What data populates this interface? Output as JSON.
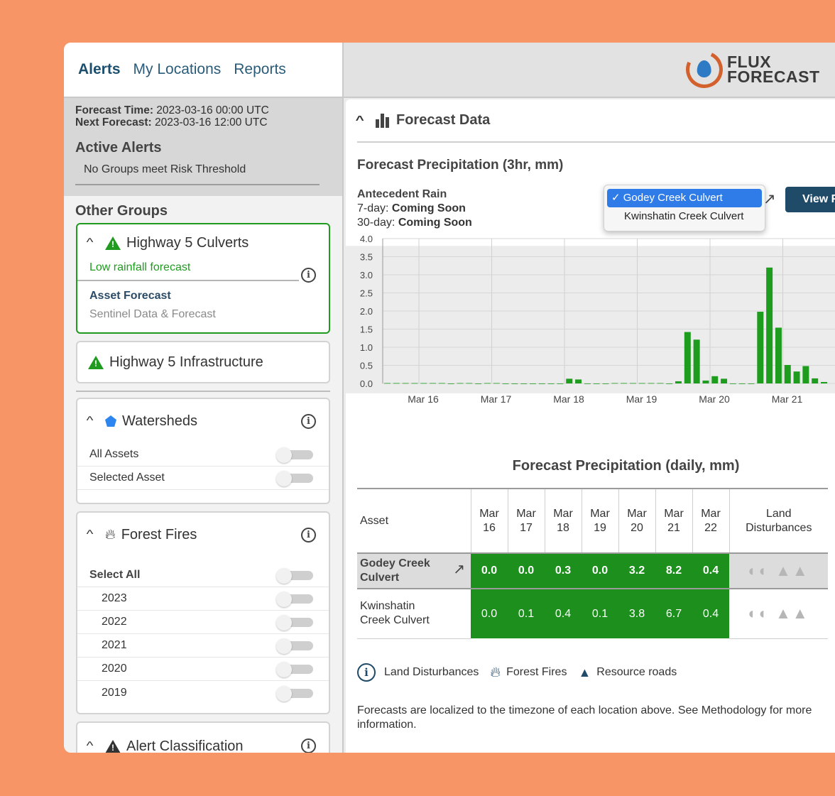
{
  "nav": {
    "tabs": [
      "Alerts",
      "My Locations",
      "Reports"
    ]
  },
  "status": {
    "forecast_time_label": "Forecast Time:",
    "forecast_time": "2023-03-16 00:00 UTC",
    "next_forecast_label": "Next Forecast:",
    "next_forecast": "2023-03-16 12:00 UTC",
    "active_alerts_title": "Active Alerts",
    "active_alerts_msg": "No Groups meet Risk Threshold"
  },
  "other_groups": {
    "title": "Other Groups",
    "highway5_culverts": {
      "title": "Highway 5 Culverts",
      "forecast": "Low rainfall forecast",
      "asset_forecast": "Asset Forecast",
      "sentinel": "Sentinel Data & Forecast"
    },
    "highway5_infra": {
      "title": "Highway 5 Infrastructure"
    },
    "watersheds": {
      "title": "Watersheds",
      "items": [
        "All Assets",
        "Selected Asset"
      ]
    },
    "forest_fires": {
      "title": "Forest Fires",
      "select_all": "Select All",
      "years": [
        "2023",
        "2022",
        "2021",
        "2020",
        "2019"
      ]
    },
    "alert_classification": {
      "title": "Alert Classification"
    }
  },
  "logo": {
    "line1": "FLUX",
    "line2": "FORECAST"
  },
  "forecast_data": {
    "title": "Forecast Data",
    "chart_title": "Forecast Precipitation (3hr, mm)",
    "antecedent": {
      "title": "Antecedent Rain",
      "seven_label": "7-day:",
      "seven_value": "Coming Soon",
      "thirty_label": "30-day:",
      "thirty_value": "Coming Soon"
    },
    "dropdown": {
      "selected": "Godey Creek Culvert",
      "options": [
        "Godey Creek Culvert",
        "Kwinshatin Creek Culvert"
      ]
    },
    "view_button": "View F"
  },
  "chart_data": {
    "type": "bar",
    "title": "Forecast Precipitation (3hr, mm)",
    "ylim": [
      0,
      4.0
    ],
    "yticks": [
      "0.0",
      "0.5",
      "1.0",
      "1.5",
      "2.0",
      "2.5",
      "3.0",
      "3.5",
      "4.0"
    ],
    "xticks": [
      "Mar 16",
      "Mar 17",
      "Mar 18",
      "Mar 19",
      "Mar 20",
      "Mar 21"
    ],
    "bar_color": "#1e9c1e",
    "values": [
      0.01,
      0.01,
      0.01,
      0.01,
      0.01,
      0.01,
      0.01,
      0.0,
      0.01,
      0.01,
      0.0,
      0.01,
      0.01,
      0.0,
      0.0,
      0.0,
      0.0,
      0.0,
      0.0,
      0.0,
      0.13,
      0.11,
      0.0,
      0.0,
      0.0,
      0.01,
      0.01,
      0.01,
      0.01,
      0.01,
      0.01,
      0.0,
      0.06,
      1.42,
      1.21,
      0.08,
      0.2,
      0.13,
      0.0,
      0.0,
      0.0,
      1.98,
      3.2,
      1.54,
      0.51,
      0.33,
      0.48,
      0.14,
      0.04
    ]
  },
  "daily": {
    "title": "Forecast Precipitation (daily, mm)",
    "headers": {
      "asset": "Asset",
      "days": [
        [
          "Mar",
          "16"
        ],
        [
          "Mar",
          "17"
        ],
        [
          "Mar",
          "18"
        ],
        [
          "Mar",
          "19"
        ],
        [
          "Mar",
          "20"
        ],
        [
          "Mar",
          "21"
        ],
        [
          "Mar",
          "22"
        ]
      ],
      "land1": "Land",
      "land2": "Disturbances"
    },
    "rows": [
      {
        "name": "Godey Creek Culvert",
        "values": [
          "0.0",
          "0.0",
          "0.3",
          "0.0",
          "3.2",
          "8.2",
          "0.4"
        ]
      },
      {
        "name": "Kwinshatin Creek Culvert",
        "values": [
          "0.0",
          "0.1",
          "0.4",
          "0.1",
          "3.8",
          "6.7",
          "0.4"
        ]
      }
    ]
  },
  "legend": {
    "land": "Land Disturbances",
    "fires": "Forest Fires",
    "roads": "Resource roads"
  },
  "note": "Forecasts are localized to the timezone of each location above. See Methodology for more information."
}
